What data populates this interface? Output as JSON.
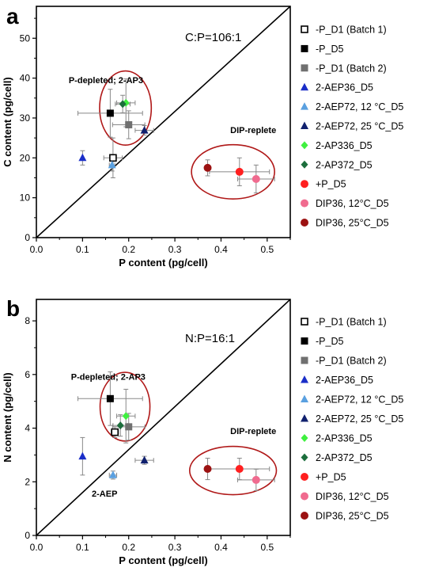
{
  "series_styles": [
    {
      "name": "-P_D1 (Batch 1)",
      "marker": "square-open",
      "color": "#000000"
    },
    {
      "name": "-P_D5",
      "marker": "square",
      "color": "#000000"
    },
    {
      "name": "-P_D1 (Batch 2)",
      "marker": "square",
      "color": "#707070"
    },
    {
      "name": "2-AEP36_D5",
      "marker": "triangle",
      "color": "#1a2ec8"
    },
    {
      "name": "2-AEP72, 12 °C_D5",
      "marker": "triangle",
      "color": "#5aa0e0"
    },
    {
      "name": "2-AEP72, 25 °C_D5",
      "marker": "triangle",
      "color": "#10206e"
    },
    {
      "name": "2-AP336_D5",
      "marker": "diamond",
      "color": "#3ff03f"
    },
    {
      "name": "2-AP372_D5",
      "marker": "diamond",
      "color": "#1c6e3c"
    },
    {
      "name": "+P_D5",
      "marker": "circle",
      "color": "#ff1f1f"
    },
    {
      "name": "DIP36, 12°C_D5",
      "marker": "circle",
      "color": "#f06b8f"
    },
    {
      "name": "DIP36, 25°C_D5",
      "marker": "circle",
      "color": "#9c1212"
    }
  ],
  "chart_data": [
    {
      "panel": "a",
      "type": "scatter",
      "xlabel": "P content (pg/cell)",
      "ylabel": "C content (pg/cell)",
      "xlim": [
        0,
        0.55
      ],
      "ylim": [
        0,
        58
      ],
      "xticks": [
        "0.0",
        "0.1",
        "0.2",
        "0.3",
        "0.4",
        "0.5"
      ],
      "yticks": [
        "0",
        "10",
        "20",
        "30",
        "40",
        "50"
      ],
      "ratio_label": "C:P=106:1",
      "ratio_line": [
        [
          0,
          0
        ],
        [
          0.55,
          58
        ]
      ],
      "grid": false,
      "legend_position": "right",
      "annotations": [
        {
          "text": "P-depleted; 2-AP3",
          "x": 0.07,
          "y": 38.7
        },
        {
          "text": "DIP-replete",
          "x": 0.42,
          "y": 26.2
        }
      ],
      "ellipses": [
        {
          "cx": 0.193,
          "cy": 32.5,
          "rx": 0.056,
          "ry": 9.3
        },
        {
          "cx": 0.426,
          "cy": 16.5,
          "rx": 0.09,
          "ry": 6.8
        }
      ],
      "points": [
        {
          "series": 0,
          "x": 0.166,
          "y": 20.0,
          "xerr": 0.02,
          "yerr": 5.0
        },
        {
          "series": 1,
          "x": 0.16,
          "y": 31.2,
          "xerr": 0.07,
          "yerr": 6.0
        },
        {
          "series": 2,
          "x": 0.2,
          "y": 28.3,
          "xerr": 0.035,
          "yerr": 3.5
        },
        {
          "series": 3,
          "x": 0.1,
          "y": 20.0,
          "xerr": 0.0,
          "yerr": 1.8
        },
        {
          "series": 4,
          "x": 0.164,
          "y": 18.2,
          "xerr": 0.006,
          "yerr": 1.5
        },
        {
          "series": 5,
          "x": 0.234,
          "y": 26.9,
          "xerr": 0.02,
          "yerr": 1.2
        },
        {
          "series": 6,
          "x": 0.194,
          "y": 33.8,
          "xerr": 0.02,
          "yerr": 6.0
        },
        {
          "series": 7,
          "x": 0.187,
          "y": 33.5,
          "xerr": 0.016,
          "yerr": 2.2
        },
        {
          "series": 8,
          "x": 0.44,
          "y": 16.5,
          "xerr": 0.065,
          "yerr": 3.5
        },
        {
          "series": 9,
          "x": 0.476,
          "y": 14.7,
          "xerr": 0.04,
          "yerr": 3.5
        },
        {
          "series": 10,
          "x": 0.371,
          "y": 17.5,
          "xerr": 0.0,
          "yerr": 2.0
        }
      ]
    },
    {
      "panel": "b",
      "type": "scatter",
      "xlabel": "P content (pg/cell)",
      "ylabel": "N content (pg/cell)",
      "xlim": [
        0,
        0.55
      ],
      "ylim": [
        0,
        8.8
      ],
      "xticks": [
        "0.0",
        "0.1",
        "0.2",
        "0.3",
        "0.4",
        "0.5"
      ],
      "yticks": [
        "0",
        "2",
        "4",
        "6",
        "8"
      ],
      "ratio_label": "N:P=16:1",
      "ratio_line": [
        [
          0,
          0
        ],
        [
          0.55,
          8.8
        ]
      ],
      "grid": false,
      "legend_position": "right",
      "annotations": [
        {
          "text": "P-depleted; 2-AP3",
          "x": 0.075,
          "y": 5.8
        },
        {
          "text": "2-AEP",
          "x": 0.12,
          "y": 1.45
        },
        {
          "text": "DIP-replete",
          "x": 0.42,
          "y": 3.78
        }
      ],
      "ellipses": [
        {
          "cx": 0.192,
          "cy": 4.8,
          "rx": 0.054,
          "ry": 1.28
        },
        {
          "cx": 0.426,
          "cy": 2.42,
          "rx": 0.094,
          "ry": 0.9
        }
      ],
      "points": [
        {
          "series": 0,
          "x": 0.17,
          "y": 3.85,
          "xerr": 0.008,
          "yerr": 0.2
        },
        {
          "series": 1,
          "x": 0.16,
          "y": 5.1,
          "xerr": 0.07,
          "yerr": 1.0
        },
        {
          "series": 2,
          "x": 0.2,
          "y": 4.05,
          "xerr": 0.035,
          "yerr": 0.5
        },
        {
          "series": 3,
          "x": 0.1,
          "y": 2.95,
          "xerr": 0.0,
          "yerr": 0.7
        },
        {
          "series": 4,
          "x": 0.166,
          "y": 2.25,
          "xerr": 0.008,
          "yerr": 0.15
        },
        {
          "series": 5,
          "x": 0.234,
          "y": 2.8,
          "xerr": 0.02,
          "yerr": 0.15
        },
        {
          "series": 6,
          "x": 0.194,
          "y": 4.45,
          "xerr": 0.02,
          "yerr": 1.0
        },
        {
          "series": 7,
          "x": 0.182,
          "y": 4.1,
          "xerr": 0.016,
          "yerr": 0.4
        },
        {
          "series": 8,
          "x": 0.44,
          "y": 2.48,
          "xerr": 0.065,
          "yerr": 0.4
        },
        {
          "series": 9,
          "x": 0.476,
          "y": 2.07,
          "xerr": 0.04,
          "yerr": 0.4
        },
        {
          "series": 10,
          "x": 0.371,
          "y": 2.48,
          "xerr": 0.0,
          "yerr": 0.4
        }
      ]
    }
  ]
}
